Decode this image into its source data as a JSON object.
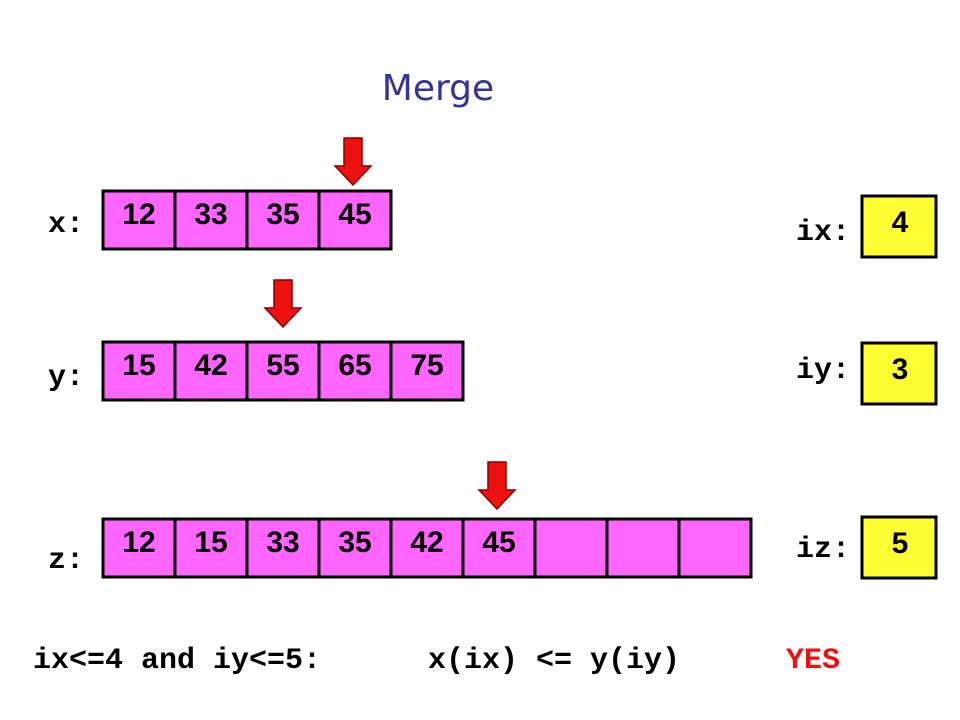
{
  "title": "Merge",
  "arrays": [
    {
      "label": "x:",
      "cells": [
        12,
        33,
        35,
        45
      ]
    },
    {
      "label": "y:",
      "cells": [
        15,
        42,
        55,
        65,
        75
      ]
    },
    {
      "label": "z:",
      "cells": [
        12,
        15,
        33,
        35,
        42,
        45,
        null,
        null,
        null
      ]
    }
  ],
  "indices": [
    {
      "label": "ix:",
      "value": 4
    },
    {
      "label": "iy:",
      "value": 3
    },
    {
      "label": "iz:",
      "value": 5
    }
  ],
  "condition": {
    "guard": "ix<=4 and iy<=5:",
    "test": "x(ix) <= y(iy)",
    "result": "YES"
  }
}
